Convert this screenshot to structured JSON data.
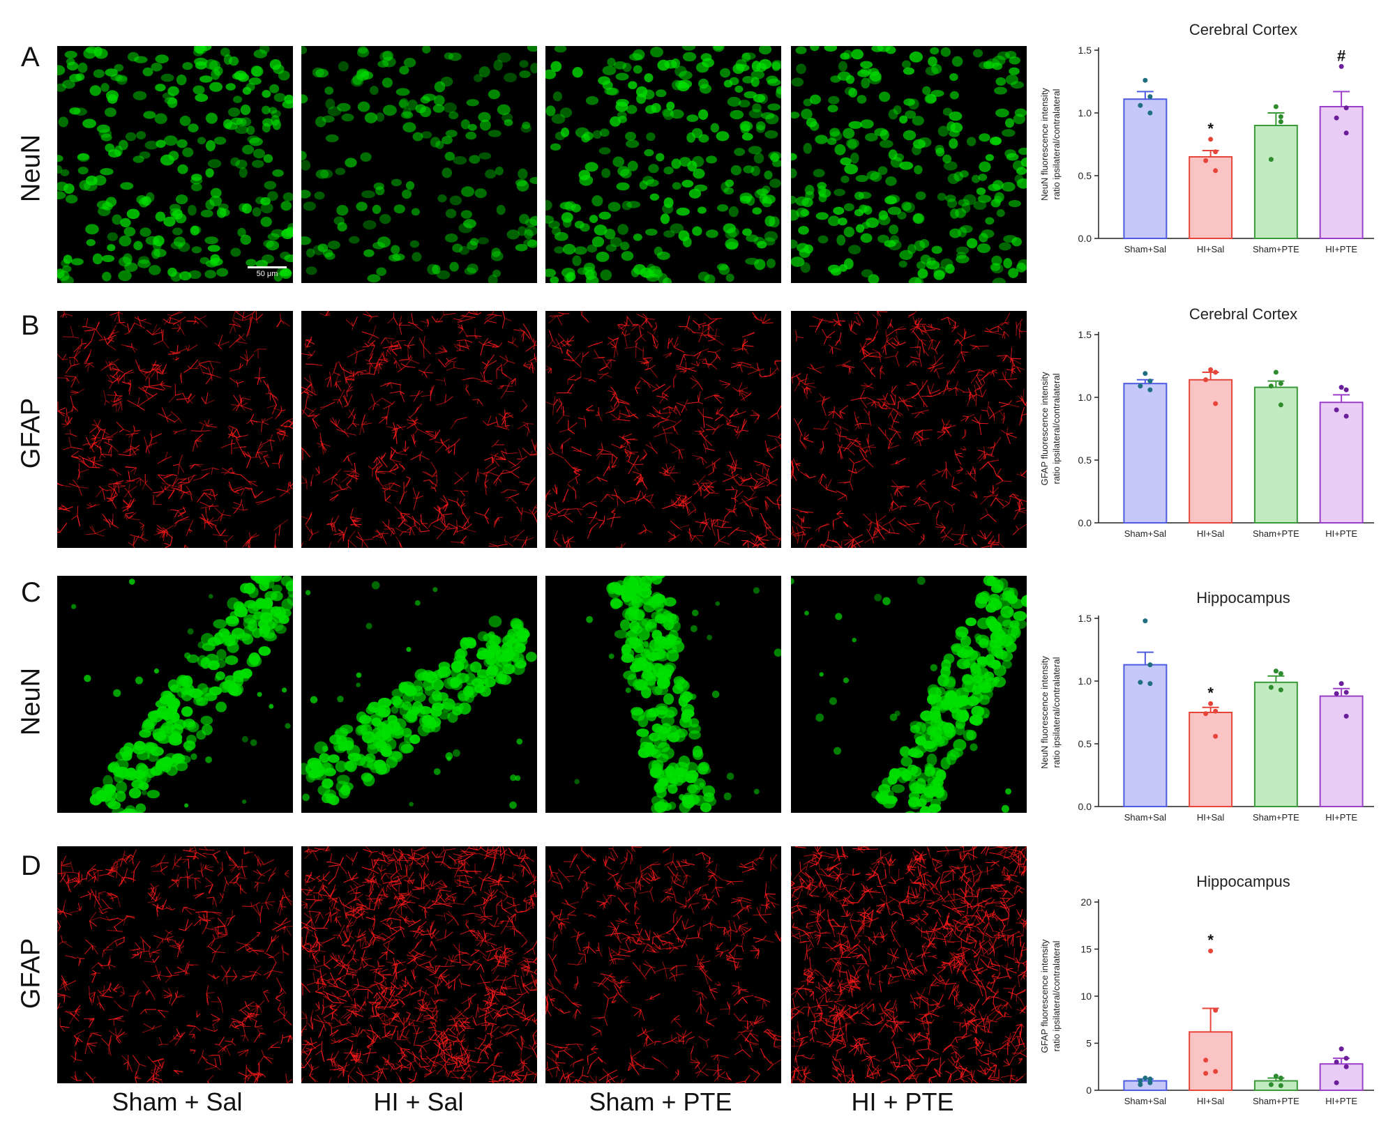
{
  "rows": [
    {
      "letter": "A",
      "stain": "NeuN",
      "color": "#00e000"
    },
    {
      "letter": "B",
      "stain": "GFAP",
      "color": "#ff1a1a"
    },
    {
      "letter": "C",
      "stain": "NeuN",
      "color": "#00e000"
    },
    {
      "letter": "D",
      "stain": "GFAP",
      "color": "#ff1a1a"
    }
  ],
  "columns": [
    "Sham + Sal",
    "HI + Sal",
    "Sham + PTE",
    "HI + PTE"
  ],
  "scale_bar": "50 μm",
  "chart_data": [
    {
      "type": "bar",
      "title": "Cerebral Cortex",
      "ylabel_line1": "NeuN fluorescence intensity",
      "ylabel_line2": "ratio ipsilateral/contralateral",
      "categories": [
        "Sham+Sal",
        "HI+Sal",
        "Sham+PTE",
        "HI+PTE"
      ],
      "values": [
        1.11,
        0.65,
        0.9,
        1.05
      ],
      "errors": [
        0.06,
        0.05,
        0.1,
        0.12
      ],
      "points": [
        [
          1.26,
          1.13,
          1.06,
          1.0
        ],
        [
          0.79,
          0.69,
          0.62,
          0.54
        ],
        [
          1.05,
          0.97,
          0.63,
          0.93
        ],
        [
          1.37,
          1.04,
          0.96,
          0.84
        ]
      ],
      "annotations": [
        "",
        "*",
        "",
        "#"
      ],
      "ylim": [
        0,
        1.5
      ],
      "yticks": [
        "0.0",
        "0.5",
        "1.0",
        "1.5"
      ],
      "fills": [
        "#c5c8f8",
        "#fbc4c4",
        "#c2ebc2",
        "#eacdf6"
      ],
      "edges": [
        "#4d5be0",
        "#e6453a",
        "#3a9a3a",
        "#9b3fc8"
      ],
      "dots": [
        "#1f6f80",
        "#e6453a",
        "#2e8b2e",
        "#6a1e9a"
      ]
    },
    {
      "type": "bar",
      "title": "Cerebral Cortex",
      "ylabel_line1": "GFAP fluorescence intensity",
      "ylabel_line2": "ratio ipsilateral/contralateral",
      "categories": [
        "Sham+Sal",
        "HI+Sal",
        "Sham+PTE",
        "HI+PTE"
      ],
      "values": [
        1.11,
        1.14,
        1.08,
        0.96
      ],
      "errors": [
        0.03,
        0.06,
        0.05,
        0.06
      ],
      "points": [
        [
          1.19,
          1.13,
          1.09,
          1.06
        ],
        [
          1.22,
          1.2,
          1.14,
          0.95
        ],
        [
          1.2,
          1.11,
          1.09,
          0.94
        ],
        [
          1.08,
          1.06,
          0.9,
          0.85
        ]
      ],
      "annotations": [
        "",
        "",
        "",
        ""
      ],
      "ylim": [
        0,
        1.5
      ],
      "yticks": [
        "0.0",
        "0.5",
        "1.0",
        "1.5"
      ],
      "fills": [
        "#c5c8f8",
        "#fbc4c4",
        "#c2ebc2",
        "#eacdf6"
      ],
      "edges": [
        "#4d5be0",
        "#e6453a",
        "#3a9a3a",
        "#9b3fc8"
      ],
      "dots": [
        "#1f6f80",
        "#e6453a",
        "#2e8b2e",
        "#6a1e9a"
      ]
    },
    {
      "type": "bar",
      "title": "Hippocampus",
      "ylabel_line1": "NeuN fluorescence intensity",
      "ylabel_line2": "ratio ipsilateral/contralateral",
      "categories": [
        "Sham+Sal",
        "HI+Sal",
        "Sham+PTE",
        "HI+PTE"
      ],
      "values": [
        1.13,
        0.75,
        0.99,
        0.88
      ],
      "errors": [
        0.1,
        0.04,
        0.05,
        0.06
      ],
      "points": [
        [
          1.48,
          1.13,
          0.99,
          0.98
        ],
        [
          0.82,
          0.76,
          0.74,
          0.56
        ],
        [
          1.08,
          1.06,
          0.95,
          0.93
        ],
        [
          0.98,
          0.91,
          0.9,
          0.72
        ]
      ],
      "annotations": [
        "",
        "*",
        "",
        ""
      ],
      "ylim": [
        0,
        1.5
      ],
      "yticks": [
        "0.0",
        "0.5",
        "1.0",
        "1.5"
      ],
      "fills": [
        "#c5c8f8",
        "#fbc4c4",
        "#c2ebc2",
        "#eacdf6"
      ],
      "edges": [
        "#4d5be0",
        "#e6453a",
        "#3a9a3a",
        "#9b3fc8"
      ],
      "dots": [
        "#1f6f80",
        "#e6453a",
        "#2e8b2e",
        "#6a1e9a"
      ]
    },
    {
      "type": "bar",
      "title": "Hippocampus",
      "ylabel_line1": "GFAP fluorescence intensity",
      "ylabel_line2": "ratio ipsilateral/contralateral",
      "categories": [
        "Sham+Sal",
        "HI+Sal",
        "Sham+PTE",
        "HI+PTE"
      ],
      "values": [
        1.0,
        6.2,
        1.0,
        2.8
      ],
      "errors": [
        0.2,
        2.5,
        0.3,
        0.6
      ],
      "points": [
        [
          1.3,
          1.2,
          1.0,
          0.8,
          0.6
        ],
        [
          14.8,
          8.5,
          3.2,
          2.0,
          1.8
        ],
        [
          1.5,
          1.3,
          0.6,
          0.5
        ],
        [
          4.4,
          3.4,
          3.0,
          2.5,
          0.8
        ]
      ],
      "annotations": [
        "",
        "*",
        "",
        ""
      ],
      "ylim": [
        0,
        20
      ],
      "yticks": [
        "0",
        "5",
        "10",
        "15",
        "20"
      ],
      "fills": [
        "#c5c8f8",
        "#fbc4c4",
        "#c2ebc2",
        "#eacdf6"
      ],
      "edges": [
        "#4d5be0",
        "#e6453a",
        "#3a9a3a",
        "#9b3fc8"
      ],
      "dots": [
        "#1f6f80",
        "#e6453a",
        "#2e8b2e",
        "#6a1e9a"
      ]
    }
  ]
}
